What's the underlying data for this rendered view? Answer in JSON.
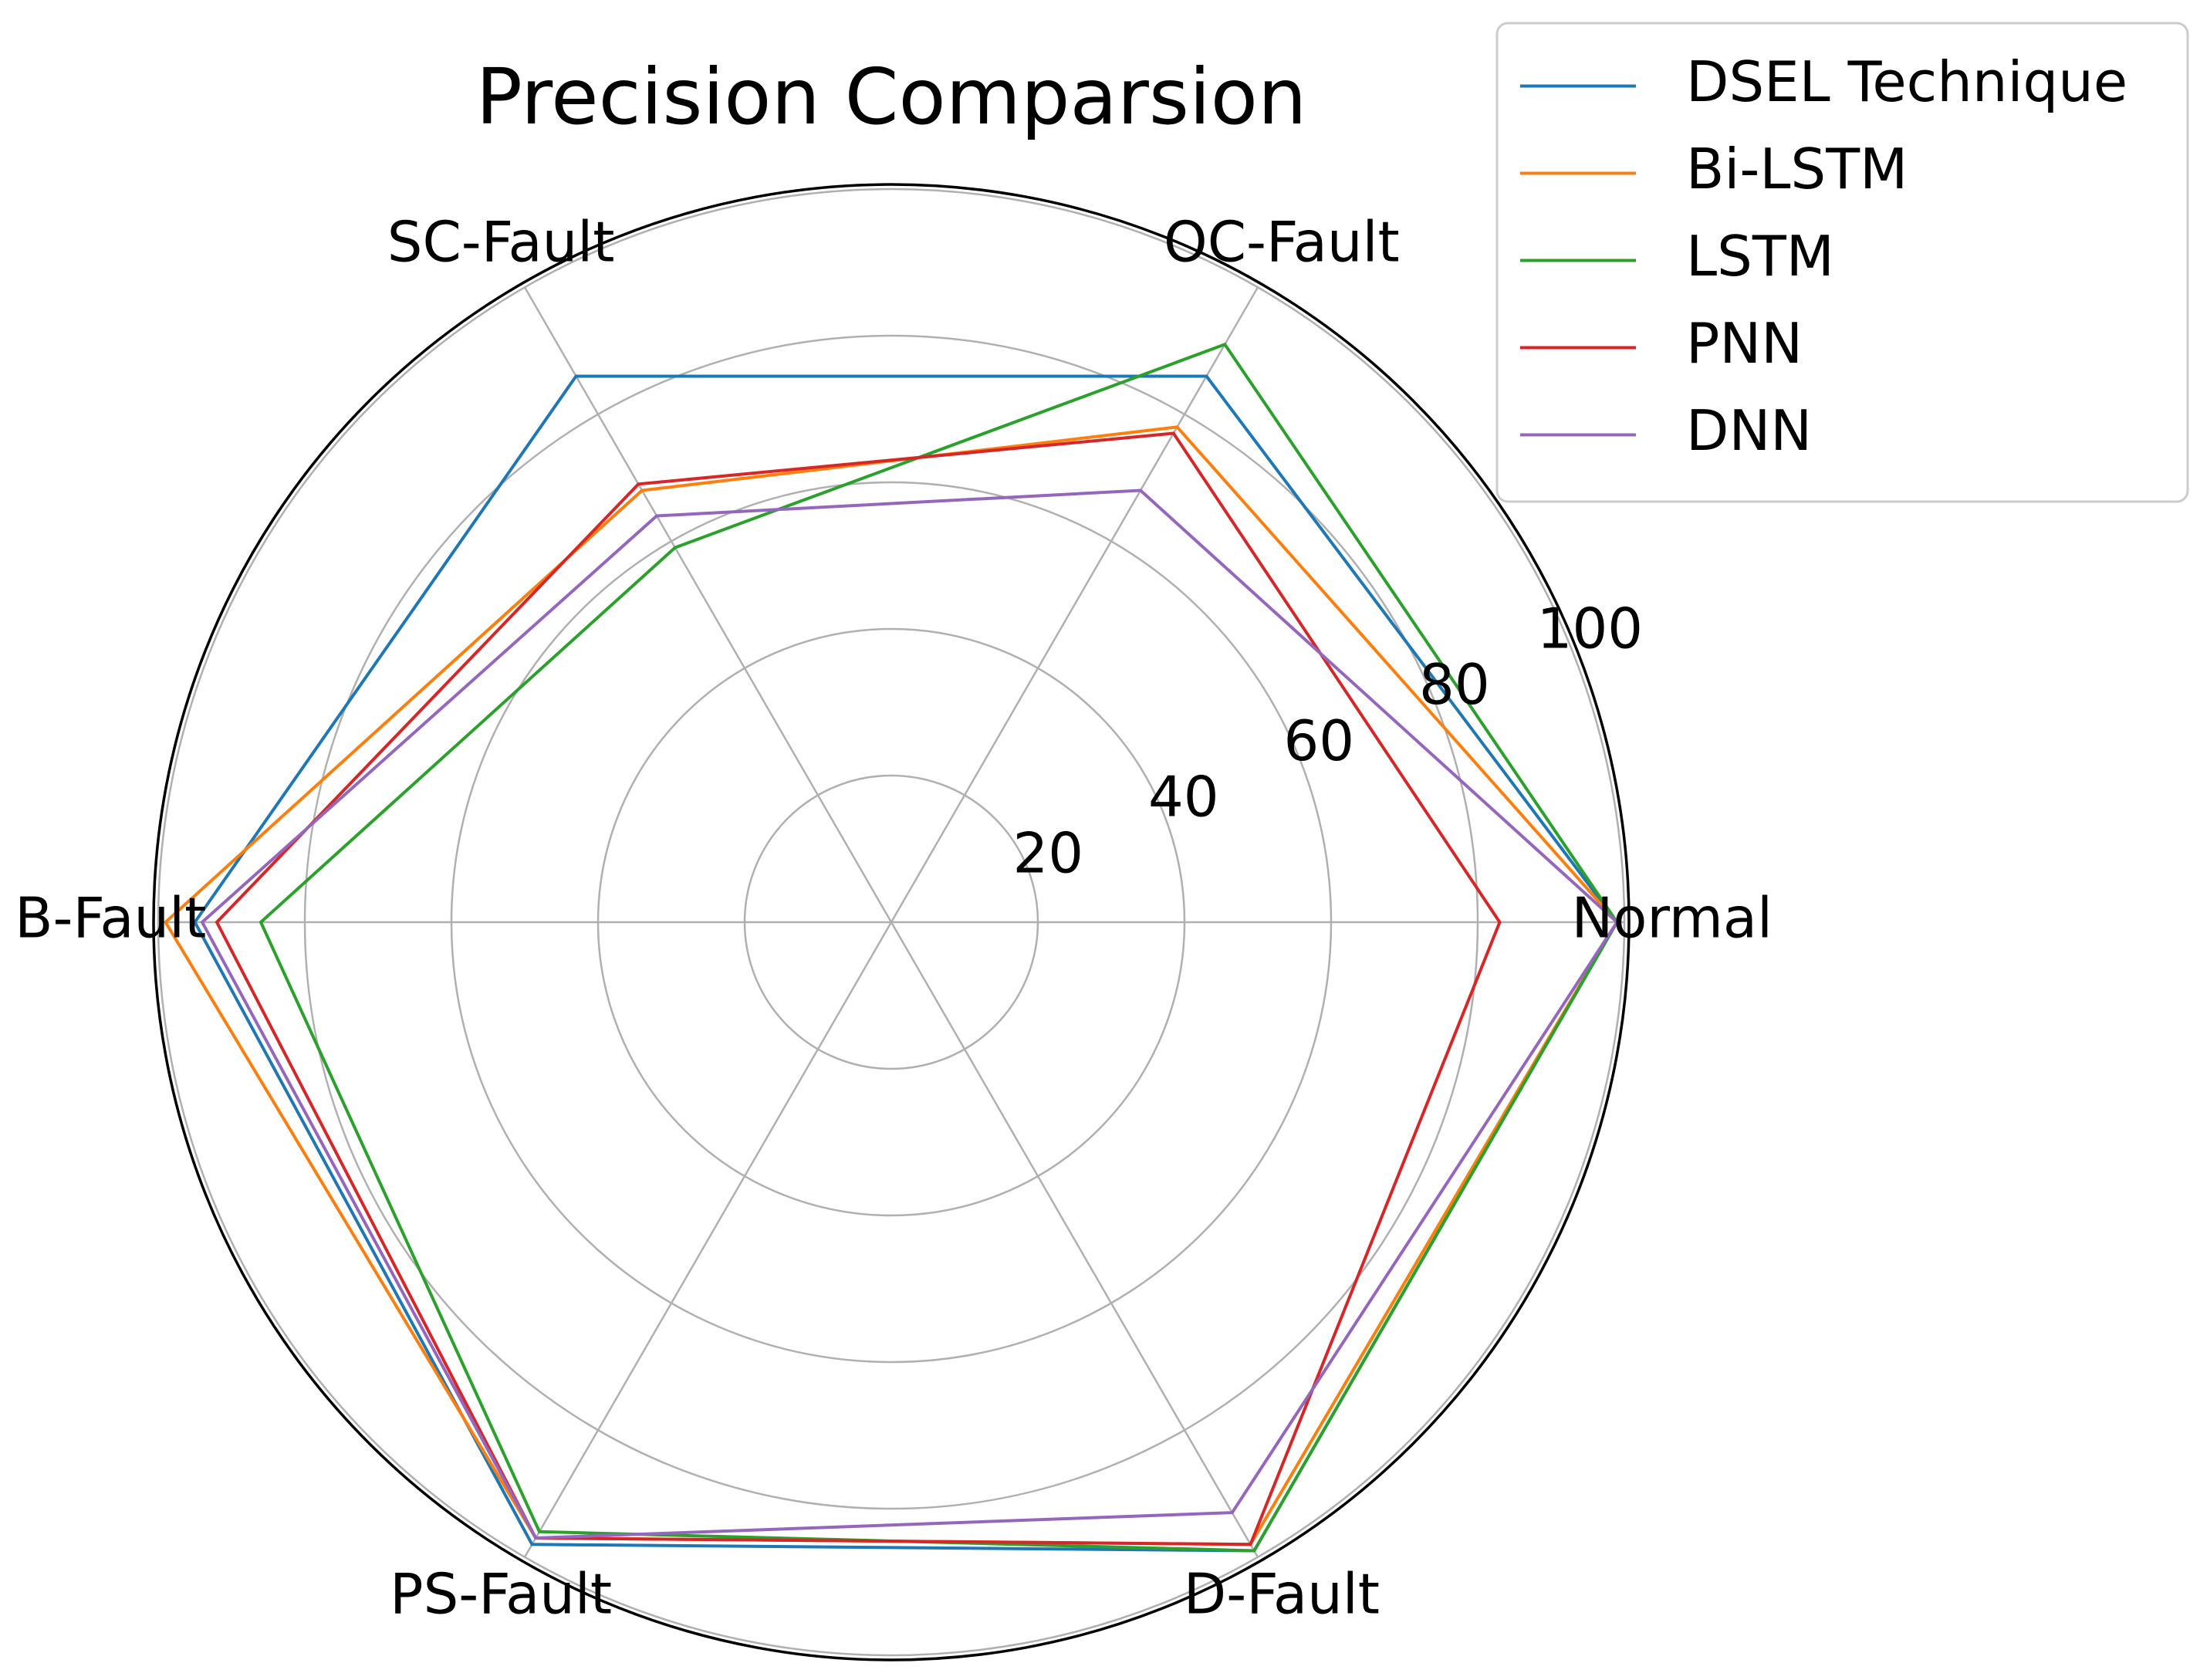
{
  "chart_data": {
    "type": "radar",
    "title": "Precision Comparsion",
    "categories": [
      "Normal",
      "OC-Fault",
      "SC-Fault",
      "B-Fault",
      "PS-Fault",
      "D-Fault"
    ],
    "rlim": [
      0,
      100
    ],
    "rticks": [
      20,
      40,
      60,
      80,
      100
    ],
    "rtick_labels": [
      "20",
      "40",
      "60",
      "80",
      "100"
    ],
    "grid": true,
    "legend_position": "top-right",
    "series": [
      {
        "name": "DSEL Technique",
        "color": "#1f77b4",
        "values": [
          99,
          86,
          86,
          95,
          98,
          99
        ]
      },
      {
        "name": "Bi-LSTM",
        "color": "#ff7f0e",
        "values": [
          99,
          78,
          68,
          99,
          97,
          98
        ]
      },
      {
        "name": "LSTM",
        "color": "#2ca02c",
        "values": [
          99,
          91,
          59,
          86,
          96,
          99
        ]
      },
      {
        "name": "PNN",
        "color": "#d62728",
        "values": [
          83,
          77,
          69,
          92,
          97,
          98
        ]
      },
      {
        "name": "DNN",
        "color": "#9467bd",
        "values": [
          99,
          68,
          64,
          94,
          97,
          93
        ]
      }
    ]
  }
}
